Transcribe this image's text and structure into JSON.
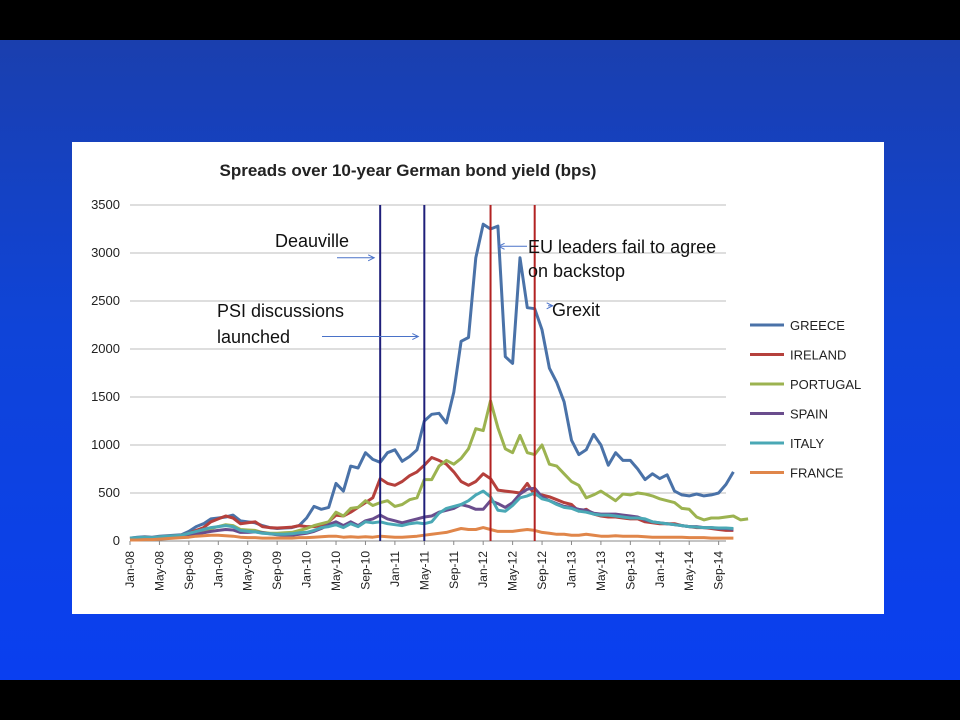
{
  "chart_data": {
    "type": "line",
    "title": "Spreads over 10-year German bond yield (bps)",
    "xlabel": "",
    "ylabel": "",
    "ylim": [
      0,
      3500
    ],
    "yticks": [
      0,
      500,
      1000,
      1500,
      2000,
      2500,
      3000,
      3500
    ],
    "grid": true,
    "legend_position": "right",
    "xlabels": [
      "Jan-08",
      "May-08",
      "Sep-08",
      "Jan-09",
      "May-09",
      "Sep-09",
      "Jan-10",
      "May-10",
      "Sep-10",
      "Jan-11",
      "May-11",
      "Sep-11",
      "Jan-12",
      "May-12",
      "Sep-12",
      "Jan-13",
      "May-13",
      "Sep-13",
      "Jan-14",
      "May-14",
      "Sep-14"
    ],
    "x_start": "Jan-08",
    "months": 82,
    "vlines": [
      {
        "month": 34,
        "color": "#1f1f7a"
      },
      {
        "month": 40,
        "color": "#1f1f7a"
      },
      {
        "month": 49,
        "color": "#b22222"
      },
      {
        "month": 55,
        "color": "#b22222"
      }
    ],
    "annotations": [
      {
        "text": "Deauville",
        "arrow_to_month": 34,
        "arrow_y": 2950
      },
      {
        "text": "PSI discussions",
        "text2": "launched",
        "arrow_to_month": 40,
        "arrow_y": 2130
      },
      {
        "text": "EU leaders fail to agree",
        "text2": "on backstop",
        "arrow_to_month": 49,
        "arrow_y": 3070
      },
      {
        "text": "Grexit",
        "arrow_to_month": 55,
        "arrow_y": 2450
      }
    ],
    "series": [
      {
        "name": "GREECE",
        "color": "#4a72a8",
        "values": [
          30,
          40,
          45,
          40,
          50,
          55,
          60,
          65,
          100,
          150,
          180,
          230,
          240,
          250,
          270,
          210,
          200,
          190,
          160,
          140,
          130,
          135,
          140,
          160,
          240,
          360,
          330,
          350,
          600,
          520,
          780,
          760,
          920,
          850,
          820,
          920,
          950,
          830,
          880,
          950,
          1250,
          1320,
          1330,
          1230,
          1550,
          2080,
          2120,
          2950,
          3300,
          3250,
          3280,
          1920,
          1850,
          2950,
          2430,
          2420,
          2200,
          1800,
          1650,
          1450,
          1050,
          900,
          950,
          1110,
          1000,
          790,
          920,
          840,
          840,
          750,
          640,
          700,
          650,
          690,
          520,
          480,
          470,
          490,
          470,
          480,
          500,
          590,
          720
        ]
      },
      {
        "name": "IRELAND",
        "color": "#b5403c",
        "values": [
          20,
          30,
          40,
          35,
          45,
          50,
          55,
          60,
          80,
          110,
          140,
          200,
          230,
          260,
          240,
          180,
          190,
          200,
          150,
          140,
          135,
          140,
          145,
          160,
          150,
          150,
          160,
          200,
          270,
          260,
          300,
          350,
          400,
          450,
          650,
          600,
          580,
          620,
          680,
          720,
          790,
          870,
          840,
          800,
          720,
          620,
          580,
          620,
          700,
          650,
          530,
          520,
          510,
          500,
          600,
          480,
          480,
          460,
          430,
          400,
          380,
          310,
          330,
          280,
          260,
          250,
          250,
          240,
          230,
          230,
          200,
          190,
          180,
          180,
          180,
          160,
          150,
          140,
          140,
          130,
          120,
          110,
          110
        ]
      },
      {
        "name": "PORTUGAL",
        "color": "#9cb350",
        "values": [
          25,
          30,
          35,
          30,
          40,
          45,
          50,
          55,
          60,
          90,
          110,
          130,
          150,
          170,
          160,
          120,
          115,
          110,
          90,
          80,
          80,
          85,
          90,
          110,
          130,
          160,
          180,
          200,
          300,
          260,
          340,
          350,
          420,
          370,
          400,
          420,
          360,
          380,
          430,
          450,
          640,
          640,
          780,
          840,
          800,
          860,
          960,
          1170,
          1150,
          1460,
          1180,
          960,
          920,
          1100,
          920,
          900,
          1000,
          800,
          780,
          700,
          620,
          580,
          450,
          480,
          520,
          470,
          420,
          490,
          480,
          500,
          490,
          470,
          440,
          420,
          400,
          340,
          330,
          250,
          220,
          240,
          240,
          250,
          260,
          220,
          230
        ]
      },
      {
        "name": "SPAIN",
        "color": "#6a4d8d",
        "values": [
          10,
          15,
          20,
          20,
          25,
          30,
          35,
          40,
          50,
          70,
          85,
          100,
          110,
          120,
          115,
          90,
          90,
          95,
          85,
          75,
          65,
          60,
          60,
          70,
          80,
          100,
          130,
          170,
          200,
          160,
          200,
          160,
          210,
          230,
          270,
          230,
          210,
          190,
          210,
          230,
          250,
          260,
          300,
          320,
          340,
          380,
          360,
          330,
          330,
          420,
          390,
          350,
          400,
          490,
          540,
          550,
          460,
          420,
          390,
          360,
          350,
          330,
          320,
          290,
          280,
          280,
          280,
          270,
          260,
          250,
          220,
          200,
          190,
          180,
          170,
          160,
          150,
          150,
          140,
          140,
          130,
          130,
          120
        ]
      },
      {
        "name": "ITALY",
        "color": "#4aa8b5",
        "values": [
          30,
          35,
          40,
          35,
          45,
          50,
          55,
          60,
          80,
          100,
          120,
          140,
          150,
          160,
          150,
          110,
          100,
          95,
          80,
          75,
          70,
          70,
          75,
          85,
          90,
          110,
          140,
          150,
          170,
          140,
          180,
          150,
          200,
          190,
          200,
          180,
          170,
          160,
          180,
          190,
          180,
          200,
          290,
          340,
          360,
          380,
          420,
          480,
          520,
          460,
          320,
          310,
          370,
          450,
          470,
          500,
          440,
          420,
          380,
          350,
          340,
          310,
          300,
          280,
          270,
          270,
          260,
          250,
          240,
          240,
          230,
          200,
          190,
          180,
          170,
          160,
          150,
          145,
          140,
          140,
          135,
          135,
          130
        ]
      },
      {
        "name": "FRANCE",
        "color": "#e0864a",
        "values": [
          10,
          10,
          15,
          15,
          20,
          25,
          30,
          35,
          40,
          50,
          55,
          60,
          60,
          55,
          50,
          40,
          35,
          35,
          30,
          30,
          30,
          30,
          30,
          35,
          35,
          40,
          45,
          50,
          50,
          40,
          45,
          40,
          45,
          40,
          50,
          45,
          40,
          40,
          45,
          50,
          60,
          70,
          80,
          90,
          110,
          130,
          120,
          120,
          140,
          120,
          100,
          100,
          100,
          110,
          120,
          110,
          90,
          80,
          70,
          70,
          60,
          60,
          70,
          60,
          50,
          50,
          55,
          50,
          50,
          50,
          45,
          40,
          40,
          40,
          40,
          40,
          35,
          35,
          35,
          30,
          30,
          30,
          30
        ]
      }
    ]
  }
}
